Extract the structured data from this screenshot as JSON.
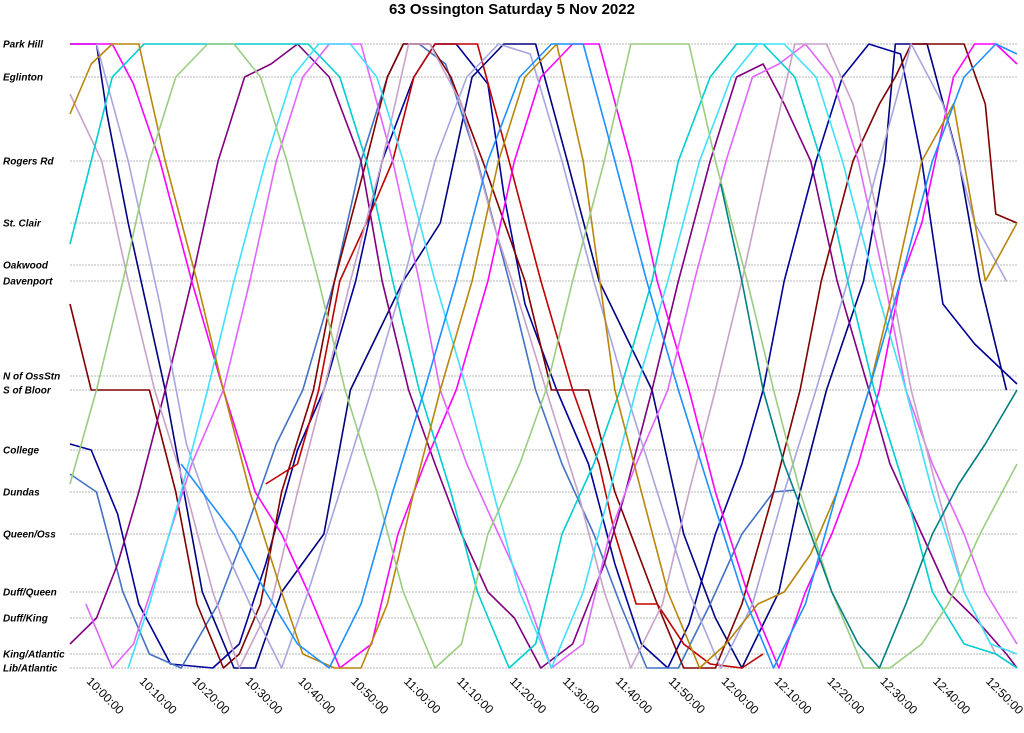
{
  "chart_data": {
    "type": "line",
    "title": "63 Ossington Saturday 5 Nov 2022",
    "xlabel": "",
    "ylabel": "",
    "x_ticks": [
      "10:00:00",
      "10:10:00",
      "10:20:00",
      "10:30:00",
      "10:40:00",
      "10:50:00",
      "11:00:00",
      "11:10:00",
      "11:20:00",
      "11:30:00",
      "11:40:00",
      "11:50:00",
      "12:00:00",
      "12:10:00",
      "12:20:00",
      "12:30:00",
      "12:40:00",
      "12:50:00"
    ],
    "xlim_minutes": [
      -3,
      176
    ],
    "stops": [
      {
        "name": "Park Hill",
        "level": 0
      },
      {
        "name": "Eglinton",
        "level": 33
      },
      {
        "name": "Rogers Rd",
        "level": 117
      },
      {
        "name": "St. Clair",
        "level": 179
      },
      {
        "name": "Oakwood",
        "level": 221
      },
      {
        "name": "Davenport",
        "level": 237
      },
      {
        "name": "N of OssStn",
        "level": 332
      },
      {
        "name": "S of Bloor",
        "level": 346
      },
      {
        "name": "College",
        "level": 406
      },
      {
        "name": "Dundas",
        "level": 448
      },
      {
        "name": "Queen/Oss",
        "level": 490
      },
      {
        "name": "Duff/Queen",
        "level": 548
      },
      {
        "name": "Duff/King",
        "level": 574
      },
      {
        "name": "King/Atlantic",
        "level": 610
      },
      {
        "name": "Lib/Atlantic",
        "level": 624
      }
    ],
    "ylim": [
      0,
      624
    ],
    "grid": true,
    "legend": "none",
    "series": [
      {
        "color": "#000080",
        "x": [
          -3,
          2,
          4,
          8,
          15,
          22,
          28,
          32,
          37,
          45,
          50,
          60,
          67,
          73,
          79,
          85,
          91,
          97,
          107,
          113,
          119,
          124,
          131,
          135,
          140,
          147,
          151,
          153,
          159,
          165,
          169,
          174
        ],
        "y": [
          0,
          0,
          70,
          179,
          346,
          548,
          624,
          624,
          548,
          490,
          346,
          237,
          179,
          33,
          0,
          0,
          117,
          237,
          346,
          490,
          574,
          624,
          548,
          448,
          346,
          237,
          117,
          0,
          0,
          117,
          237,
          346
        ]
      },
      {
        "color": "#000099",
        "x": [
          -3,
          1,
          6,
          10,
          16,
          24,
          29,
          34,
          40,
          45,
          51,
          56,
          62,
          66,
          70,
          76,
          79,
          83,
          89,
          95,
          100,
          105,
          110,
          114,
          119,
          124,
          128,
          132,
          138,
          143,
          148,
          154,
          158,
          162,
          168,
          172,
          176
        ],
        "y": [
          400,
          406,
          470,
          560,
          620,
          624,
          600,
          520,
          406,
          346,
          237,
          117,
          33,
          0,
          0,
          40,
          150,
          260,
          346,
          420,
          520,
          600,
          624,
          580,
          490,
          420,
          346,
          237,
          117,
          33,
          0,
          10,
          117,
          260,
          300,
          320,
          340
        ]
      },
      {
        "color": "#4472c4",
        "x": [
          -3,
          2,
          7,
          12,
          18,
          25,
          30,
          36,
          41,
          47,
          52,
          57,
          60,
          63,
          68,
          74,
          80,
          85,
          90,
          96,
          101,
          106,
          112,
          118,
          124,
          130,
          134
        ],
        "y": [
          430,
          448,
          548,
          610,
          624,
          560,
          490,
          400,
          346,
          237,
          117,
          33,
          0,
          0,
          20,
          117,
          237,
          346,
          420,
          490,
          560,
          624,
          624,
          560,
          490,
          448,
          446
        ]
      },
      {
        "color": "#800000",
        "x": [
          -3,
          1,
          5,
          12,
          17,
          21,
          26,
          29,
          33,
          37,
          43,
          47,
          53,
          57,
          60,
          65,
          69,
          75,
          83,
          88,
          95,
          100,
          103,
          108,
          113,
          119,
          124,
          130,
          135,
          139,
          145,
          150,
          153,
          156,
          160,
          166,
          170,
          172,
          176
        ],
        "y": [
          260,
          346,
          346,
          346,
          448,
          560,
          624,
          610,
          560,
          448,
          346,
          237,
          117,
          33,
          0,
          0,
          33,
          117,
          237,
          346,
          346,
          448,
          490,
          560,
          624,
          624,
          560,
          448,
          346,
          237,
          117,
          60,
          33,
          0,
          0,
          0,
          60,
          170,
          179
        ]
      },
      {
        "color": "#c00000",
        "x": [
          34,
          40,
          44,
          48,
          53,
          58,
          62,
          66,
          71,
          74,
          80,
          86,
          92,
          97,
          100,
          104,
          108,
          113,
          118,
          124,
          128
        ],
        "y": [
          440,
          420,
          346,
          237,
          179,
          117,
          33,
          0,
          0,
          0,
          117,
          237,
          346,
          420,
          490,
          560,
          560,
          600,
          620,
          624,
          610
        ]
      },
      {
        "color": "#800080",
        "x": [
          -3,
          2,
          6,
          10,
          15,
          20,
          25,
          30,
          35,
          40,
          46,
          52,
          56,
          61,
          66,
          71,
          76,
          81,
          86,
          92,
          98,
          102,
          107,
          112,
          118,
          123,
          128,
          132,
          137,
          142,
          148,
          152,
          158,
          163,
          168,
          174,
          176
        ],
        "y": [
          600,
          574,
          520,
          448,
          346,
          237,
          117,
          33,
          20,
          0,
          33,
          117,
          237,
          346,
          420,
          490,
          548,
          574,
          624,
          600,
          520,
          448,
          346,
          237,
          117,
          33,
          20,
          60,
          117,
          237,
          346,
          420,
          490,
          548,
          574,
          610,
          624
        ]
      },
      {
        "color": "#ff00ff",
        "x": [
          -3,
          3,
          5,
          9,
          14,
          20,
          26,
          32,
          37,
          42,
          48,
          54,
          59,
          64,
          70,
          76,
          81,
          86,
          92,
          97,
          103,
          108,
          114,
          119,
          125,
          131,
          136,
          141,
          146,
          150,
          154,
          158,
          164,
          168,
          172,
          176
        ],
        "y": [
          0,
          0,
          0,
          40,
          117,
          237,
          346,
          448,
          490,
          548,
          624,
          600,
          490,
          420,
          346,
          237,
          117,
          33,
          0,
          0,
          117,
          237,
          346,
          448,
          548,
          624,
          548,
          490,
          420,
          346,
          237,
          179,
          33,
          0,
          0,
          20
        ]
      },
      {
        "color": "#e066ff",
        "x": [
          0,
          5,
          9,
          14,
          20,
          26,
          31,
          36,
          41,
          46,
          52,
          58,
          63,
          67,
          72,
          78,
          83,
          88,
          94,
          99,
          104,
          110,
          115,
          121,
          126,
          131,
          136,
          141,
          146,
          151,
          155,
          160,
          166,
          170,
          176
        ],
        "y": [
          560,
          624,
          600,
          520,
          420,
          346,
          237,
          117,
          33,
          0,
          0,
          117,
          237,
          346,
          420,
          490,
          548,
          624,
          600,
          490,
          420,
          346,
          237,
          117,
          33,
          20,
          0,
          33,
          117,
          237,
          346,
          420,
          490,
          548,
          600
        ]
      },
      {
        "color": "#c8a2c8",
        "x": [
          -3,
          3,
          8,
          13,
          19,
          24,
          29,
          35,
          40,
          45,
          50,
          56,
          61,
          65,
          71,
          77,
          82,
          87,
          93,
          98,
          103,
          109,
          114,
          119,
          124,
          129,
          134,
          140,
          145,
          150,
          156,
          161,
          166,
          172,
          176
        ],
        "y": [
          50,
          117,
          237,
          346,
          448,
          548,
          624,
          560,
          448,
          346,
          237,
          117,
          0,
          0,
          60,
          179,
          260,
          346,
          448,
          548,
          624,
          560,
          448,
          346,
          237,
          117,
          0,
          0,
          60,
          179,
          346,
          448,
          548,
          610,
          624
        ]
      },
      {
        "color": "#a6a6e0",
        "x": [
          2,
          8,
          14,
          19,
          25,
          31,
          37,
          42,
          48,
          54,
          60,
          66,
          72,
          78,
          84,
          90,
          96,
          102,
          108,
          114,
          120,
          126,
          132,
          138,
          144,
          150,
          156,
          162,
          168,
          174
        ],
        "y": [
          0,
          117,
          260,
          400,
          490,
          560,
          624,
          548,
          448,
          346,
          237,
          117,
          33,
          0,
          10,
          117,
          237,
          346,
          448,
          548,
          624,
          560,
          448,
          346,
          237,
          117,
          0,
          60,
          179,
          237
        ]
      },
      {
        "color": "#00ced1",
        "x": [
          -3,
          1,
          5,
          11,
          16,
          21,
          27,
          32,
          37,
          42,
          48,
          53,
          58,
          63,
          69,
          74,
          80,
          85,
          90,
          96,
          101,
          107,
          112,
          118,
          123,
          128,
          134,
          139,
          144,
          149,
          155,
          160,
          166,
          172,
          176
        ],
        "y": [
          200,
          117,
          33,
          0,
          0,
          0,
          0,
          0,
          0,
          0,
          33,
          117,
          237,
          346,
          448,
          548,
          624,
          600,
          490,
          420,
          346,
          237,
          117,
          33,
          0,
          0,
          33,
          117,
          237,
          346,
          448,
          548,
          600,
          610,
          624
        ]
      },
      {
        "color": "#40e0ff",
        "x": [
          8,
          12,
          18,
          23,
          28,
          34,
          39,
          44,
          50,
          55,
          60,
          66,
          72,
          77,
          82,
          88,
          94,
          99,
          104,
          110,
          116,
          122,
          127,
          132,
          138,
          143,
          149,
          155,
          160,
          166,
          171,
          176
        ],
        "y": [
          624,
          560,
          448,
          346,
          237,
          117,
          33,
          0,
          0,
          33,
          117,
          237,
          346,
          448,
          548,
          624,
          548,
          448,
          346,
          237,
          117,
          33,
          0,
          0,
          33,
          117,
          237,
          346,
          448,
          548,
          600,
          610
        ]
      },
      {
        "color": "#b8860b",
        "x": [
          -3,
          1,
          5,
          10,
          15,
          21,
          26,
          31,
          37,
          41,
          47,
          52,
          57,
          62,
          67,
          73,
          78,
          83,
          89,
          94,
          100,
          105,
          110,
          116,
          121,
          127,
          132,
          137,
          142,
          148,
          153,
          158,
          164,
          170,
          176
        ],
        "y": [
          70,
          20,
          0,
          0,
          117,
          237,
          346,
          448,
          548,
          610,
          624,
          624,
          560,
          448,
          346,
          237,
          117,
          33,
          0,
          117,
          346,
          448,
          548,
          624,
          600,
          560,
          548,
          510,
          448,
          346,
          237,
          117,
          60,
          237,
          179
        ]
      },
      {
        "color": "#9acd82",
        "x": [
          -3,
          2,
          7,
          12,
          17,
          23,
          28,
          33,
          38,
          44,
          49,
          55,
          60,
          66,
          71,
          76,
          82,
          87,
          92,
          98,
          103,
          108,
          114,
          119,
          125,
          130,
          135,
          141,
          147,
          152,
          158,
          163,
          169,
          176
        ],
        "y": [
          440,
          346,
          237,
          117,
          33,
          0,
          0,
          33,
          117,
          237,
          346,
          448,
          548,
          624,
          600,
          490,
          420,
          346,
          237,
          117,
          0,
          0,
          0,
          117,
          237,
          346,
          448,
          548,
          624,
          624,
          600,
          560,
          490,
          420
        ]
      },
      {
        "color": "#008080",
        "x": [
          120,
          124,
          128,
          132,
          137,
          141,
          146,
          150,
          155,
          160,
          165,
          170,
          176
        ],
        "y": [
          140,
          237,
          346,
          420,
          490,
          548,
          600,
          624,
          560,
          490,
          440,
          400,
          346
        ]
      },
      {
        "color": "#1e90ff",
        "x": [
          18,
          22,
          28,
          34,
          40,
          46,
          52,
          58,
          64,
          70,
          76,
          82,
          88,
          94,
          100,
          106,
          112,
          118,
          124,
          130,
          136,
          142,
          148,
          154,
          160,
          166,
          172,
          176
        ],
        "y": [
          420,
          448,
          490,
          548,
          600,
          624,
          560,
          448,
          346,
          237,
          117,
          33,
          0,
          0,
          117,
          237,
          346,
          448,
          548,
          624,
          560,
          448,
          346,
          237,
          117,
          33,
          0,
          10
        ]
      }
    ]
  }
}
